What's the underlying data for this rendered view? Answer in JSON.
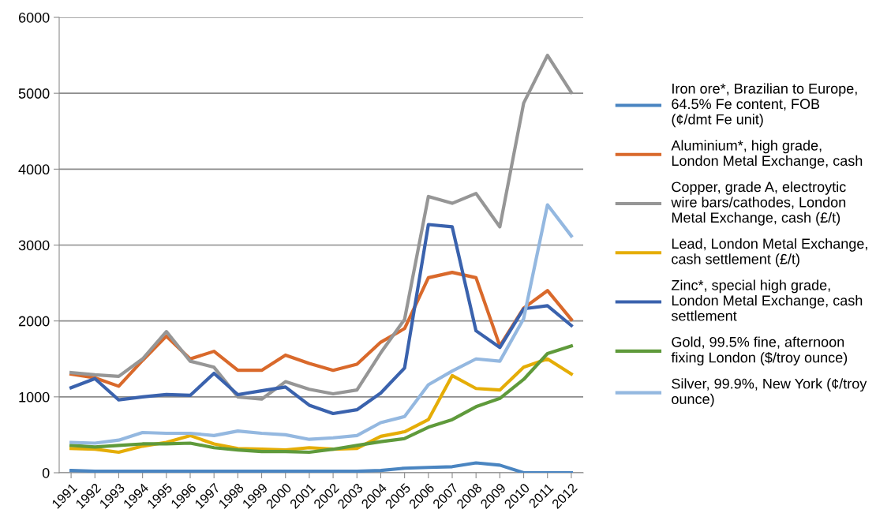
{
  "chart_data": {
    "type": "line",
    "categories": [
      "1991",
      "1992",
      "1993",
      "1994",
      "1995",
      "1996",
      "1997",
      "1998",
      "1999",
      "2000",
      "2001",
      "2002",
      "2003",
      "2004",
      "2005",
      "2006",
      "2007",
      "2008",
      "2009",
      "2010",
      "2011",
      "2012"
    ],
    "ylim": [
      0,
      6000
    ],
    "yticks": [
      0,
      1000,
      2000,
      3000,
      4000,
      5000,
      6000
    ],
    "grid": "y",
    "legend": "right",
    "marker": "none",
    "line_style": "solid",
    "series": [
      {
        "name": "Iron ore*, Brazilian to Europe,\n64.5% Fe content, FOB\n(¢/dmt Fe unit)",
        "color": "#4a85c1",
        "values": [
          30,
          20,
          20,
          20,
          20,
          20,
          20,
          20,
          20,
          20,
          20,
          20,
          20,
          30,
          60,
          70,
          80,
          130,
          100,
          0,
          0,
          0
        ]
      },
      {
        "name": "Aluminium*, high grade,\nLondon Metal Exchange, cash",
        "color": "#d9692b",
        "values": [
          1300,
          1250,
          1140,
          1480,
          1800,
          1500,
          1600,
          1350,
          1350,
          1550,
          1440,
          1350,
          1430,
          1720,
          1900,
          2570,
          2640,
          2570,
          1670,
          2170,
          2400,
          2020
        ]
      },
      {
        "name": "Copper, grade A, electroytic\nwire bars/cathodes, London\nMetal Exchange, cash (£/t)",
        "color": "#969696",
        "values": [
          1320,
          1290,
          1270,
          1500,
          1860,
          1470,
          1390,
          1000,
          970,
          1200,
          1100,
          1040,
          1090,
          1580,
          2020,
          3640,
          3550,
          3680,
          3240,
          4870,
          5500,
          5010
        ]
      },
      {
        "name": "Lead, London Metal Exchange,\ncash settlement (£/t)",
        "color": "#e5ad06",
        "values": [
          320,
          310,
          270,
          350,
          400,
          490,
          380,
          320,
          310,
          300,
          330,
          310,
          320,
          480,
          540,
          700,
          1280,
          1110,
          1090,
          1390,
          1500,
          1300
        ]
      },
      {
        "name": "Zinc*, special high grade,\nLondon Metal Exchange, cash\nsettlement",
        "color": "#3a62ad",
        "values": [
          1120,
          1240,
          960,
          1000,
          1030,
          1020,
          1310,
          1030,
          1080,
          1130,
          890,
          780,
          830,
          1050,
          1380,
          3270,
          3240,
          1870,
          1650,
          2160,
          2200,
          1940
        ]
      },
      {
        "name": "Gold, 99.5% fine, afternoon\nfixing London ($/troy ounce)",
        "color": "#5f9a3b",
        "values": [
          360,
          340,
          360,
          380,
          380,
          390,
          330,
          300,
          280,
          280,
          270,
          310,
          360,
          410,
          450,
          600,
          700,
          870,
          980,
          1230,
          1570,
          1670
        ]
      },
      {
        "name": "Silver, 99.9%, New York (¢/troy\nounce)",
        "color": "#94b8e0",
        "values": [
          400,
          390,
          430,
          530,
          520,
          520,
          490,
          550,
          520,
          500,
          440,
          460,
          490,
          660,
          740,
          1160,
          1340,
          1500,
          1470,
          2030,
          3530,
          3120
        ]
      }
    ]
  }
}
